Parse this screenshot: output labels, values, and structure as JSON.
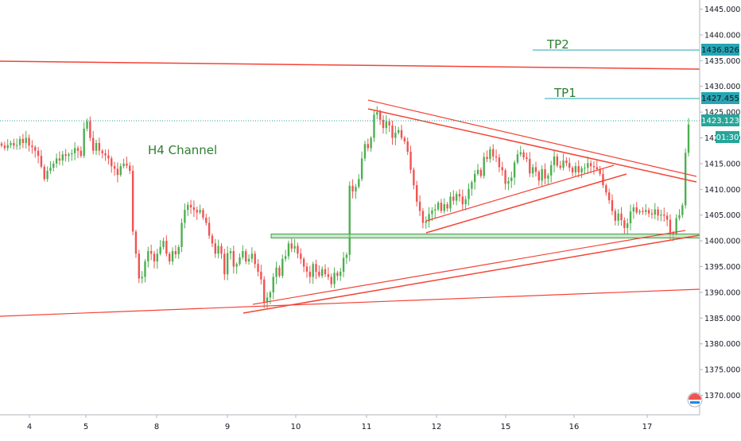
{
  "colors": {
    "bull": "#26a69a",
    "bull_alt": "#4caf50",
    "bear": "#ef5350",
    "trend": "#f44336",
    "tp": "#26a6b4",
    "zone_fill": "#a5d6a7",
    "zone_stroke": "#43a047",
    "price_badge": "#26a69a",
    "text": "#131722",
    "annotation": "#2e7d32"
  },
  "chart_data": {
    "type": "candlestick",
    "title": "",
    "xlabel": "",
    "ylabel": "",
    "ylim": [
      1366.0,
      1447.0
    ],
    "grid": false,
    "y_ticks": [
      "1445.000",
      "1440.000",
      "1435.000",
      "1430.000",
      "1425.000",
      "1420.000",
      "1415.000",
      "1410.000",
      "1405.000",
      "1400.000",
      "1395.000",
      "1390.000",
      "1385.000",
      "1380.000",
      "1375.000",
      "1370.000"
    ],
    "x_ticks": [
      "4",
      "5",
      "8",
      "9",
      "10",
      "11",
      "12",
      "15",
      "16",
      "17"
    ],
    "current_price": "1423.123",
    "countdown": "01:30",
    "annotations": {
      "channel_label": "H4 Channel",
      "tp1_label": "TP1",
      "tp1_value": "1427.455",
      "tp2_label": "TP2",
      "tp2_value": "1436.826"
    },
    "candles_close": [
      1418.5,
      1418.0,
      1418.6,
      1419.0,
      1418.5,
      1418.6,
      1419.8,
      1419.0,
      1420.0,
      1418.5,
      1418.2,
      1417.5,
      1416.5,
      1414.4,
      1412.0,
      1413.6,
      1414.2,
      1415.0,
      1416.0,
      1415.6,
      1416.8,
      1416.5,
      1416.8,
      1417.0,
      1418.0,
      1417.5,
      1416.5,
      1421.8,
      1423.2,
      1420.0,
      1417.5,
      1419.0,
      1417.5,
      1417.0,
      1416.6,
      1416.0,
      1414.5,
      1414.0,
      1412.8,
      1414.5,
      1415.0,
      1414.6,
      1413.6,
      1401.8,
      1397.5,
      1392.7,
      1393.0,
      1396.0,
      1398.0,
      1397.5,
      1396.0,
      1397.5,
      1398.8,
      1400.0,
      1397.5,
      1396.0,
      1398.0,
      1397.4,
      1398.8,
      1403.5,
      1406.0,
      1407.0,
      1406.5,
      1406.0,
      1405.5,
      1406.0,
      1404.5,
      1403.5,
      1401.0,
      1399.5,
      1397.5,
      1399.0,
      1397.5,
      1393.5,
      1397.6,
      1398.0,
      1395.0,
      1395.5,
      1396.8,
      1398.0,
      1396.0,
      1396.5,
      1397.5,
      1395.5,
      1394.0,
      1392.5,
      1388.0,
      1389.0,
      1390.0,
      1393.0,
      1394.8,
      1393.2,
      1396.5,
      1397.0,
      1399.5,
      1398.5,
      1399.0,
      1397.5,
      1396.5,
      1395.0,
      1394.0,
      1393.0,
      1395.5,
      1394.0,
      1393.2,
      1394.5,
      1393.5,
      1393.0,
      1391.6,
      1393.8,
      1393.2,
      1394.0,
      1396.7,
      1397.3,
      1410.7,
      1409.6,
      1410.5,
      1412.0,
      1416.0,
      1418.8,
      1418.0,
      1420.0,
      1424.5,
      1425.0,
      1423.5,
      1421.9,
      1423.2,
      1422.4,
      1420.0,
      1421.0,
      1421.5,
      1420.0,
      1419.3,
      1417.3,
      1413.8,
      1410.8,
      1407.6,
      1405.8,
      1403.5,
      1403.8,
      1405.2,
      1405.9,
      1406.1,
      1407.4,
      1405.8,
      1407.1,
      1406.3,
      1408.6,
      1407.8,
      1409.1,
      1408.6,
      1407.1,
      1408.1,
      1410.1,
      1411.4,
      1413.0,
      1413.8,
      1412.6,
      1416.3,
      1415.9,
      1417.8,
      1416.4,
      1416.2,
      1414.3,
      1413.7,
      1411.1,
      1411.6,
      1412.3,
      1415.2,
      1416.8,
      1417.2,
      1416.2,
      1415.9,
      1413.1,
      1414.3,
      1413.4,
      1411.7,
      1413.9,
      1412.1,
      1412.7,
      1414.7,
      1416.4,
      1414.6,
      1414.2,
      1415.6,
      1415.1,
      1414.2,
      1413.3,
      1414.5,
      1413.3,
      1414.1,
      1414.2,
      1415.1,
      1414.5,
      1414.3,
      1413.9,
      1413.0,
      1410.8,
      1409.4,
      1407.9,
      1405.8,
      1403.9,
      1405.3,
      1404.0,
      1402.5,
      1403.4,
      1405.7,
      1406.5,
      1405.5,
      1405.8,
      1405.6,
      1406.0,
      1405.3,
      1405.1,
      1406.1,
      1404.9,
      1405.1,
      1404.9,
      1404.1,
      1401.6,
      1401.4,
      1404.4,
      1405.0,
      1406.9,
      1417.1,
      1422.6
    ]
  }
}
